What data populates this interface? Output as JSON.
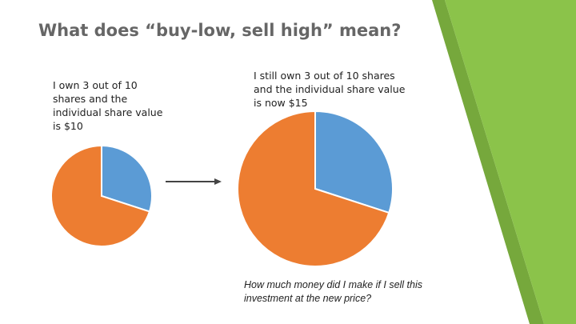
{
  "slide": {
    "title": "What does “buy-low, sell high” mean?",
    "question": "How much money did I make if I sell this investment at the new price?"
  },
  "chart_data": [
    {
      "type": "pie",
      "title": "I own 3 out of 10 shares and the individual share value is $10",
      "values": [
        3,
        7
      ],
      "colors": [
        "#5b9bd5",
        "#ed7d31"
      ]
    },
    {
      "type": "pie",
      "title": "I still own 3 out of 10 shares and the individual share value is now $15",
      "values": [
        3,
        7
      ],
      "colors": [
        "#5b9bd5",
        "#ed7d31"
      ]
    }
  ]
}
